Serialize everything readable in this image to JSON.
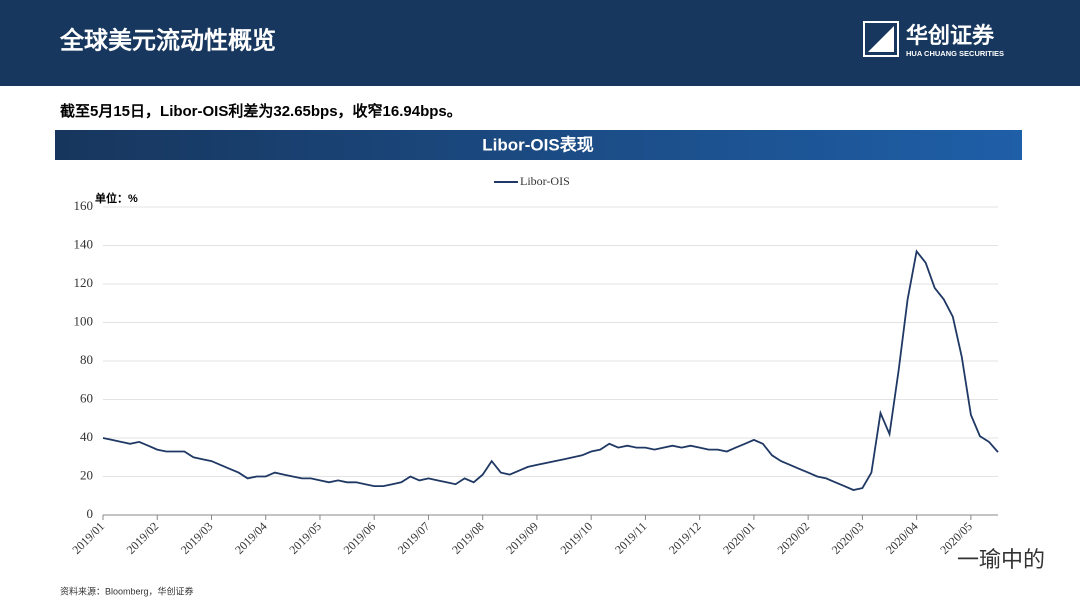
{
  "header": {
    "title": "全球美元流动性概览",
    "logo": "华创证券",
    "logo_sub": "HUA CHUANG SECURITIES"
  },
  "summary": "截至5月15日，Libor-OIS利差为32.65bps，收窄16.94bps。",
  "banner": "Libor-OIS表现",
  "chart_data": {
    "type": "line",
    "y_unit": "单位：%",
    "categories": [
      "2019/01",
      null,
      null,
      null,
      null,
      null,
      "2019/02",
      null,
      null,
      null,
      null,
      null,
      "2019/03",
      null,
      null,
      null,
      null,
      null,
      "2019/04",
      null,
      null,
      null,
      null,
      null,
      "2019/05",
      null,
      null,
      null,
      null,
      null,
      "2019/06",
      null,
      null,
      null,
      null,
      null,
      "2019/07",
      null,
      null,
      null,
      null,
      null,
      "2019/08",
      null,
      null,
      null,
      null,
      null,
      "2019/09",
      null,
      null,
      null,
      null,
      null,
      "2019/10",
      null,
      null,
      null,
      null,
      null,
      "2019/11",
      null,
      null,
      null,
      null,
      null,
      "2019/12",
      null,
      null,
      null,
      null,
      null,
      "2020/01",
      null,
      null,
      null,
      null,
      null,
      "2020/02",
      null,
      null,
      null,
      null,
      null,
      "2020/03",
      null,
      null,
      null,
      null,
      null,
      "2020/04",
      null,
      null,
      null,
      null,
      null,
      "2020/05",
      null,
      null,
      null
    ],
    "series": [
      {
        "name": "Libor-OIS",
        "color": "#1f3864",
        "values": [
          40,
          39,
          38,
          37,
          38,
          36,
          34,
          33,
          33,
          33,
          30,
          29,
          28,
          26,
          24,
          22,
          19,
          20,
          20,
          22,
          21,
          20,
          19,
          19,
          18,
          17,
          18,
          17,
          17,
          16,
          15,
          15,
          16,
          17,
          20,
          18,
          19,
          18,
          17,
          16,
          19,
          17,
          21,
          28,
          22,
          21,
          23,
          25,
          26,
          27,
          28,
          29,
          30,
          31,
          33,
          34,
          37,
          35,
          36,
          35,
          35,
          34,
          35,
          36,
          35,
          36,
          35,
          34,
          34,
          33,
          35,
          37,
          39,
          37,
          31,
          28,
          26,
          24,
          22,
          20,
          19,
          17,
          15,
          13,
          14,
          22,
          53,
          42,
          75,
          112,
          137,
          131,
          118,
          112,
          103,
          82,
          52,
          41,
          38,
          32.65
        ]
      }
    ],
    "ylim": [
      0,
      160
    ],
    "yticks": [
      0,
      20,
      40,
      60,
      80,
      100,
      120,
      140,
      160
    ],
    "grid": true,
    "legend": "top"
  },
  "source": "资料来源：Bloomberg，华创证券",
  "watermark": "一瑜中的"
}
